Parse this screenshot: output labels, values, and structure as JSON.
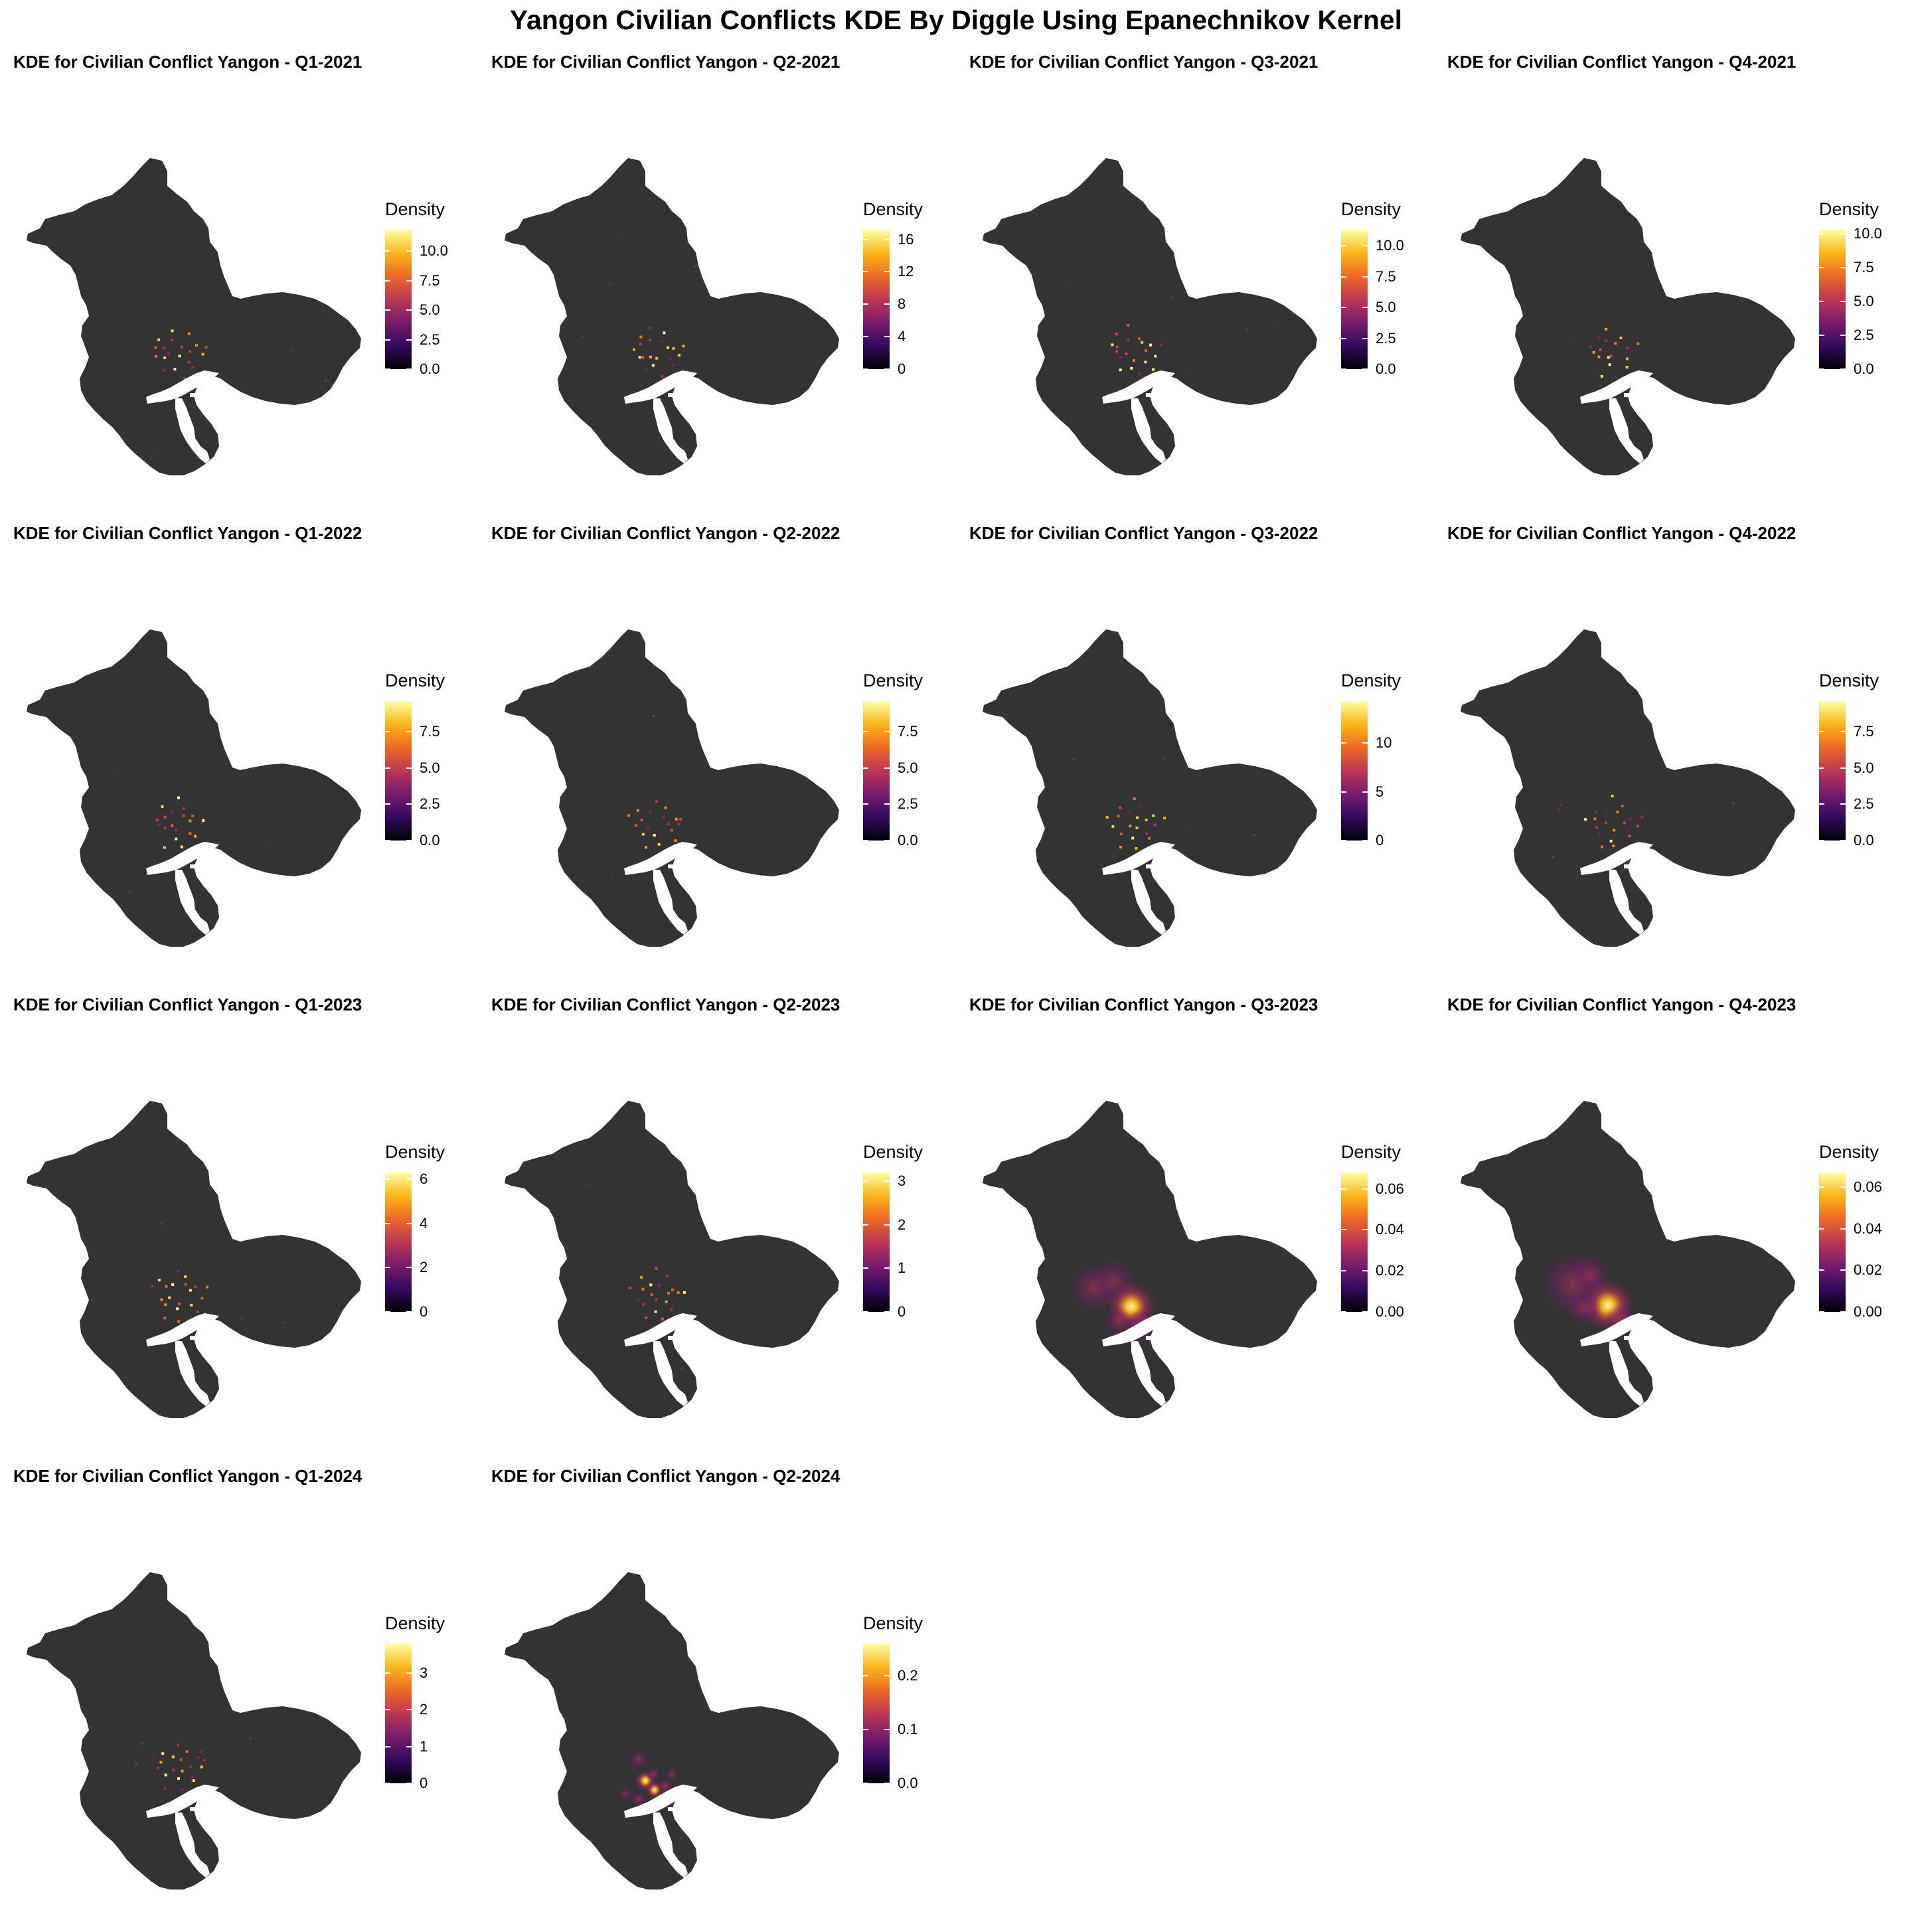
{
  "title": "Yangon  Civilian Conflicts KDE By Diggle Using Epanechnikov Kernel",
  "colors": {
    "background": "#ffffff",
    "region_fill": "#333333",
    "river": "#ffffff",
    "colormap": [
      "#000004",
      "#320a5e",
      "#781c6d",
      "#bc3754",
      "#ed6925",
      "#fbb61a",
      "#fcffa4"
    ]
  },
  "chart_data": [
    {
      "type": "heatmap",
      "title": "KDE for Civilian Conflict Yangon - Q1-2021",
      "legend_title": "Density",
      "ticks": [
        "0.0",
        "2.5",
        "5.0",
        "7.5",
        "10.0"
      ],
      "tick_values": [
        0,
        2.5,
        5,
        7.5,
        10
      ],
      "max": 11.8,
      "style": "points"
    },
    {
      "type": "heatmap",
      "title": "KDE for Civilian Conflict Yangon - Q2-2021",
      "legend_title": "Density",
      "ticks": [
        "0",
        "4",
        "8",
        "12",
        "16"
      ],
      "tick_values": [
        0,
        4,
        8,
        12,
        16
      ],
      "max": 17.2,
      "style": "points"
    },
    {
      "type": "heatmap",
      "title": "KDE for Civilian Conflict Yangon - Q3-2021",
      "legend_title": "Density",
      "ticks": [
        "0.0",
        "2.5",
        "5.0",
        "7.5",
        "10.0"
      ],
      "tick_values": [
        0,
        2.5,
        5,
        7.5,
        10
      ],
      "max": 11.3,
      "style": "points"
    },
    {
      "type": "heatmap",
      "title": "KDE for Civilian Conflict Yangon - Q4-2021",
      "legend_title": "Density",
      "ticks": [
        "0.0",
        "2.5",
        "5.0",
        "7.5",
        "10.0"
      ],
      "tick_values": [
        0,
        2.5,
        5,
        7.5,
        10
      ],
      "max": 10.3,
      "style": "points"
    },
    {
      "type": "heatmap",
      "title": "KDE for Civilian Conflict Yangon - Q1-2022",
      "legend_title": "Density",
      "ticks": [
        "0.0",
        "2.5",
        "5.0",
        "7.5"
      ],
      "tick_values": [
        0,
        2.5,
        5,
        7.5
      ],
      "max": 9.6,
      "style": "points"
    },
    {
      "type": "heatmap",
      "title": "KDE for Civilian Conflict Yangon - Q2-2022",
      "legend_title": "Density",
      "ticks": [
        "0.0",
        "2.5",
        "5.0",
        "7.5"
      ],
      "tick_values": [
        0,
        2.5,
        5,
        7.5
      ],
      "max": 9.6,
      "style": "points"
    },
    {
      "type": "heatmap",
      "title": "KDE for Civilian Conflict Yangon - Q3-2022",
      "legend_title": "Density",
      "ticks": [
        "0",
        "5",
        "10"
      ],
      "tick_values": [
        0,
        5,
        10
      ],
      "max": 14.3,
      "style": "points"
    },
    {
      "type": "heatmap",
      "title": "KDE for Civilian Conflict Yangon - Q4-2022",
      "legend_title": "Density",
      "ticks": [
        "0.0",
        "2.5",
        "5.0",
        "7.5"
      ],
      "tick_values": [
        0,
        2.5,
        5,
        7.5
      ],
      "max": 9.6,
      "style": "points"
    },
    {
      "type": "heatmap",
      "title": "KDE for Civilian Conflict Yangon - Q1-2023",
      "legend_title": "Density",
      "ticks": [
        "0",
        "2",
        "4",
        "6"
      ],
      "tick_values": [
        0,
        2,
        4,
        6
      ],
      "max": 6.3,
      "style": "points"
    },
    {
      "type": "heatmap",
      "title": "KDE for Civilian Conflict Yangon - Q2-2023",
      "legend_title": "Density",
      "ticks": [
        "0",
        "1",
        "2",
        "3"
      ],
      "tick_values": [
        0,
        1,
        2,
        3
      ],
      "max": 3.2,
      "style": "points"
    },
    {
      "type": "heatmap",
      "title": "KDE for Civilian Conflict Yangon - Q3-2023",
      "legend_title": "Density",
      "ticks": [
        "0.00",
        "0.02",
        "0.04",
        "0.06"
      ],
      "tick_values": [
        0,
        0.02,
        0.04,
        0.06
      ],
      "max": 0.068,
      "style": "blobs"
    },
    {
      "type": "heatmap",
      "title": "KDE for Civilian Conflict Yangon - Q4-2023",
      "legend_title": "Density",
      "ticks": [
        "0.00",
        "0.02",
        "0.04",
        "0.06"
      ],
      "tick_values": [
        0,
        0.02,
        0.04,
        0.06
      ],
      "max": 0.067,
      "style": "blobs"
    },
    {
      "type": "heatmap",
      "title": "KDE for Civilian Conflict Yangon - Q1-2024",
      "legend_title": "Density",
      "ticks": [
        "0",
        "1",
        "2",
        "3"
      ],
      "tick_values": [
        0,
        1,
        2,
        3
      ],
      "max": 3.8,
      "style": "points"
    },
    {
      "type": "heatmap",
      "title": "KDE for Civilian Conflict Yangon - Q2-2024",
      "legend_title": "Density",
      "ticks": [
        "0.0",
        "0.1",
        "0.2"
      ],
      "tick_values": [
        0,
        0.1,
        0.2
      ],
      "max": 0.26,
      "style": "small-blobs"
    }
  ]
}
